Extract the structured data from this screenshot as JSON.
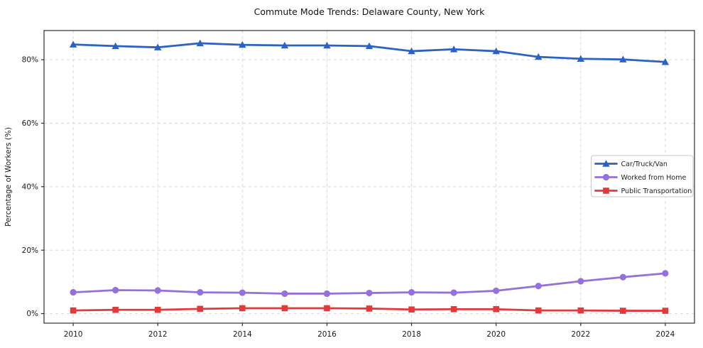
{
  "chart_data": {
    "type": "line",
    "title": "Commute Mode Trends: Delaware County, New York",
    "xlabel": "",
    "ylabel": "Percentage of Workers (%)",
    "x": [
      2010,
      2011,
      2012,
      2013,
      2014,
      2015,
      2016,
      2017,
      2018,
      2019,
      2020,
      2021,
      2022,
      2023,
      2024
    ],
    "series": [
      {
        "name": "Car/Truck/Van",
        "color": "#2b63c4",
        "marker": "triangle",
        "values": [
          84.8,
          84.3,
          83.9,
          85.2,
          84.7,
          84.5,
          84.5,
          84.3,
          82.7,
          83.3,
          82.7,
          80.9,
          80.3,
          80.1,
          79.3
        ]
      },
      {
        "name": "Worked from Home",
        "color": "#9771db",
        "marker": "circle",
        "values": [
          6.7,
          7.4,
          7.3,
          6.7,
          6.6,
          6.3,
          6.3,
          6.5,
          6.7,
          6.6,
          7.2,
          8.7,
          10.2,
          11.5,
          12.7
        ]
      },
      {
        "name": "Public Transportation",
        "color": "#e03a3a",
        "marker": "square",
        "values": [
          1.0,
          1.2,
          1.2,
          1.5,
          1.7,
          1.7,
          1.7,
          1.6,
          1.3,
          1.4,
          1.4,
          1.0,
          1.0,
          0.9,
          0.9
        ]
      }
    ],
    "x_ticks": [
      2010,
      2012,
      2014,
      2016,
      2018,
      2020,
      2022,
      2024
    ],
    "y_ticks": [
      0,
      20,
      40,
      60,
      80
    ],
    "y_tick_suffix": "%",
    "xlim": [
      2009.31,
      2024.69
    ],
    "ylim": [
      -3.0,
      89.2
    ],
    "grid": true,
    "grid_style": "dashed",
    "legend": {
      "position": "center-right",
      "entries": [
        "Car/Truck/Van",
        "Worked from Home",
        "Public Transportation"
      ]
    },
    "colors": {
      "grid": "#d9d9d9",
      "spine": "#2e2e2e",
      "tick_label": "#1a1a1a",
      "title": "#111111",
      "background": "#ffffff",
      "legend_border": "#c9c9c9",
      "legend_bg": "#ffffff"
    }
  }
}
